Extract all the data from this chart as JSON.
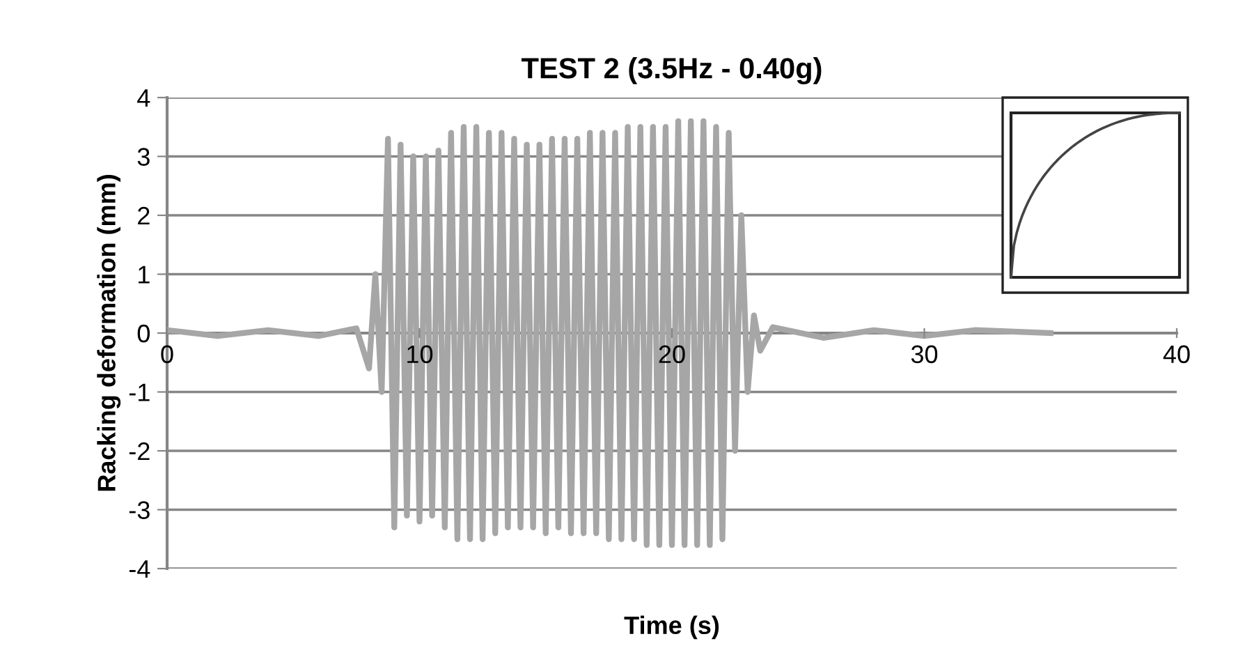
{
  "chart_data": {
    "type": "line",
    "title": "TEST 2 (3.5Hz - 0.40g)",
    "xlabel": "Time (s)",
    "ylabel": "Racking deformation (mm)",
    "xlim": [
      0,
      40
    ],
    "xticks": [
      0,
      10,
      20,
      30,
      40
    ],
    "ylim": [
      -4,
      4
    ],
    "yticks": [
      -4,
      -3,
      -2,
      -1,
      0,
      1,
      2,
      3,
      4
    ],
    "grid": "y",
    "legend": false,
    "marker": "none",
    "line_style": "solid",
    "series": [
      {
        "color": "#a6a6a6",
        "x": [
          0,
          2,
          4,
          6,
          7.5,
          8.0,
          8.25,
          8.5,
          8.75,
          9.0,
          9.25,
          9.5,
          9.75,
          10.0,
          10.25,
          10.5,
          10.75,
          11.0,
          11.25,
          11.5,
          11.75,
          12.0,
          12.25,
          12.5,
          12.75,
          13.0,
          13.25,
          13.5,
          13.75,
          14.0,
          14.25,
          14.5,
          14.75,
          15.0,
          15.25,
          15.5,
          15.75,
          16.0,
          16.25,
          16.5,
          16.75,
          17.0,
          17.25,
          17.5,
          17.75,
          18.0,
          18.25,
          18.5,
          18.75,
          19.0,
          19.25,
          19.5,
          19.75,
          20.0,
          20.25,
          20.5,
          20.75,
          21.0,
          21.25,
          21.5,
          21.75,
          22.0,
          22.25,
          22.5,
          22.75,
          23.0,
          23.25,
          23.5,
          24,
          26,
          28,
          30,
          32,
          35
        ],
        "values": [
          0.05,
          -0.05,
          0.05,
          -0.05,
          0.08,
          -0.6,
          1.0,
          -1.0,
          3.3,
          -3.3,
          3.2,
          -3.1,
          3.0,
          -3.2,
          3.0,
          -3.1,
          3.1,
          -3.3,
          3.4,
          -3.5,
          3.5,
          -3.5,
          3.5,
          -3.5,
          3.4,
          -3.4,
          3.4,
          -3.3,
          3.3,
          -3.3,
          3.2,
          -3.3,
          3.2,
          -3.4,
          3.3,
          -3.3,
          3.3,
          -3.4,
          3.3,
          -3.4,
          3.4,
          -3.4,
          3.4,
          -3.5,
          3.4,
          -3.5,
          3.5,
          -3.5,
          3.5,
          -3.6,
          3.5,
          -3.6,
          3.5,
          -3.6,
          3.6,
          -3.6,
          3.6,
          -3.6,
          3.6,
          -3.6,
          3.5,
          -3.5,
          3.4,
          -2.0,
          2.0,
          -1.0,
          0.3,
          -0.3,
          0.1,
          -0.08,
          0.05,
          -0.05,
          0.05,
          0.0
        ]
      }
    ]
  }
}
